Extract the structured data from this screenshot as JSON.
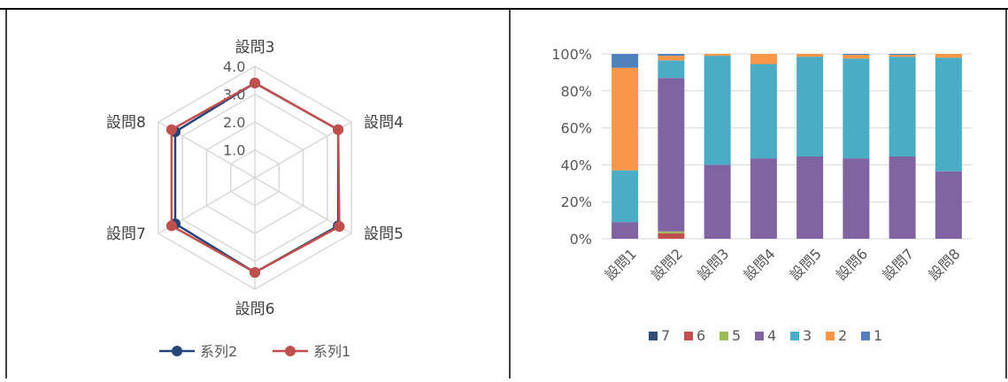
{
  "radar_chart": {
    "chart_data": {
      "type": "radar",
      "categories": [
        "設問3",
        "設問4",
        "設問5",
        "設問6",
        "設問7",
        "設問8"
      ],
      "r_ticks": [
        "1.0",
        "2.0",
        "3.0",
        "4.0"
      ],
      "rlim": [
        0,
        4
      ],
      "series": [
        {
          "name": "系列2",
          "color": "#264478",
          "values": [
            3.4,
            3.45,
            3.45,
            3.4,
            3.3,
            3.3
          ]
        },
        {
          "name": "系列1",
          "color": "#C0504D",
          "values": [
            3.4,
            3.45,
            3.5,
            3.4,
            3.45,
            3.45
          ]
        }
      ],
      "legend": "bottom"
    }
  },
  "bar_chart": {
    "chart_data": {
      "type": "bar",
      "stacked": "percent",
      "categories": [
        "設問1",
        "設問2",
        "設問3",
        "設問4",
        "設問5",
        "設問6",
        "設問7",
        "設問8"
      ],
      "y_ticks": [
        "0%",
        "20%",
        "40%",
        "60%",
        "80%",
        "100%"
      ],
      "ylim": [
        0,
        100
      ],
      "series": [
        {
          "name": "7",
          "color": "#2E4C7C",
          "values": [
            0,
            0,
            0,
            0,
            0,
            0,
            0,
            0
          ]
        },
        {
          "name": "6",
          "color": "#C0504D",
          "values": [
            0,
            3,
            0,
            0,
            0,
            0,
            0,
            0
          ]
        },
        {
          "name": "5",
          "color": "#9BBB59",
          "values": [
            0,
            1,
            0,
            0,
            0,
            0,
            0,
            0
          ]
        },
        {
          "name": "4",
          "color": "#8064A2",
          "values": [
            9,
            83,
            40,
            43.5,
            44.5,
            43.5,
            44.5,
            36.5
          ]
        },
        {
          "name": "3",
          "color": "#4BACC6",
          "values": [
            28,
            9.5,
            59,
            51,
            54,
            54,
            54,
            61.5
          ]
        },
        {
          "name": "2",
          "color": "#F79646",
          "values": [
            55.5,
            2.5,
            1,
            5.5,
            1.5,
            2,
            1,
            2
          ]
        },
        {
          "name": "1",
          "color": "#4F81BD",
          "values": [
            7.5,
            1,
            0,
            0,
            0,
            0.5,
            0.5,
            0
          ]
        }
      ],
      "legend": "bottom",
      "grid": true
    }
  }
}
